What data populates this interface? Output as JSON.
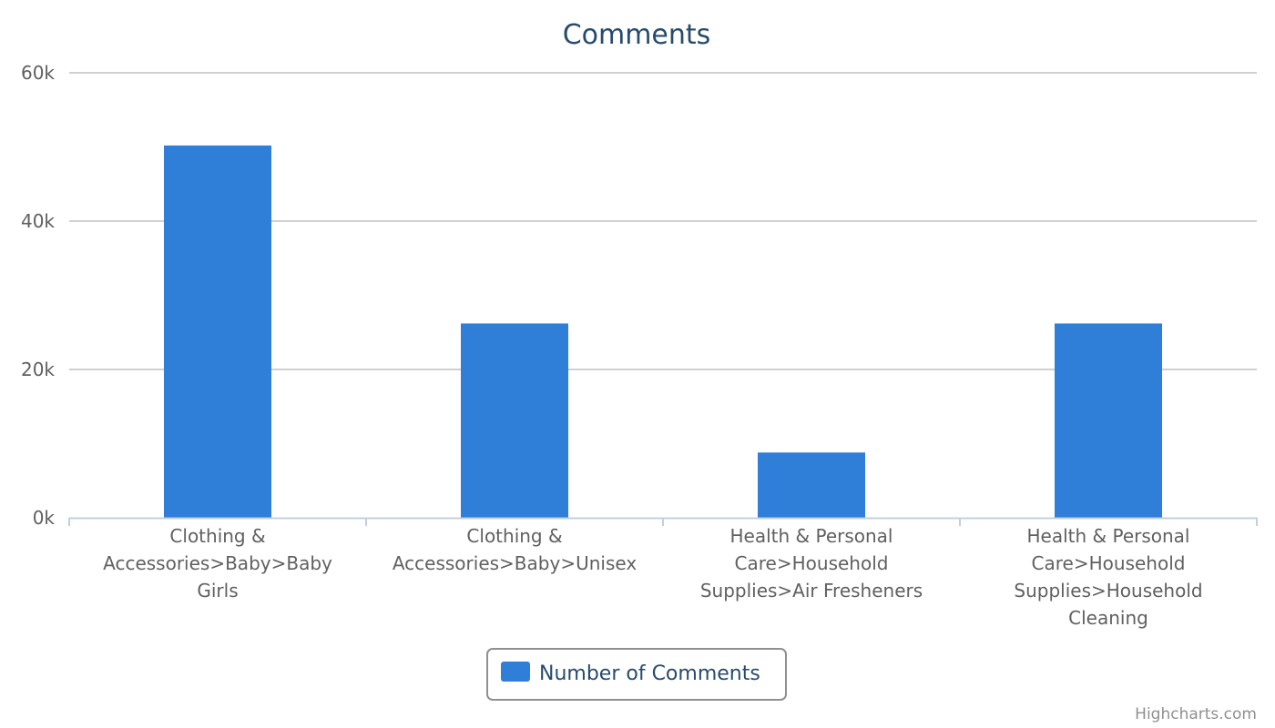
{
  "chart_data": {
    "type": "bar",
    "title": "Comments",
    "categories": [
      "Clothing & Accessories>Baby>Baby Girls",
      "Clothing & Accessories>Baby>Unisex",
      "Health & Personal Care>Household Supplies>Air Fresheners",
      "Health & Personal Care>Household Supplies>Household Cleaning"
    ],
    "category_lines": [
      [
        "Clothing &",
        "Accessories>Baby>Baby",
        "Girls"
      ],
      [
        "Clothing &",
        "Accessories>Baby>Unisex"
      ],
      [
        "Health & Personal",
        "Care>Household",
        "Supplies>Air Fresheners"
      ],
      [
        "Health & Personal",
        "Care>Household",
        "Supplies>Household",
        "Cleaning"
      ]
    ],
    "series": [
      {
        "name": "Number of Comments",
        "values": [
          50200,
          26200,
          8800,
          26200
        ]
      }
    ],
    "ylim": [
      0,
      60000
    ],
    "yticks": [
      0,
      20000,
      40000,
      60000
    ],
    "ytick_labels": [
      "0k",
      "20k",
      "40k",
      "60k"
    ],
    "xlabel": "",
    "ylabel": "",
    "grid": true,
    "legend": "bottom-center",
    "bar_color": "#2f7ed8"
  },
  "credits": "Highcharts.com"
}
